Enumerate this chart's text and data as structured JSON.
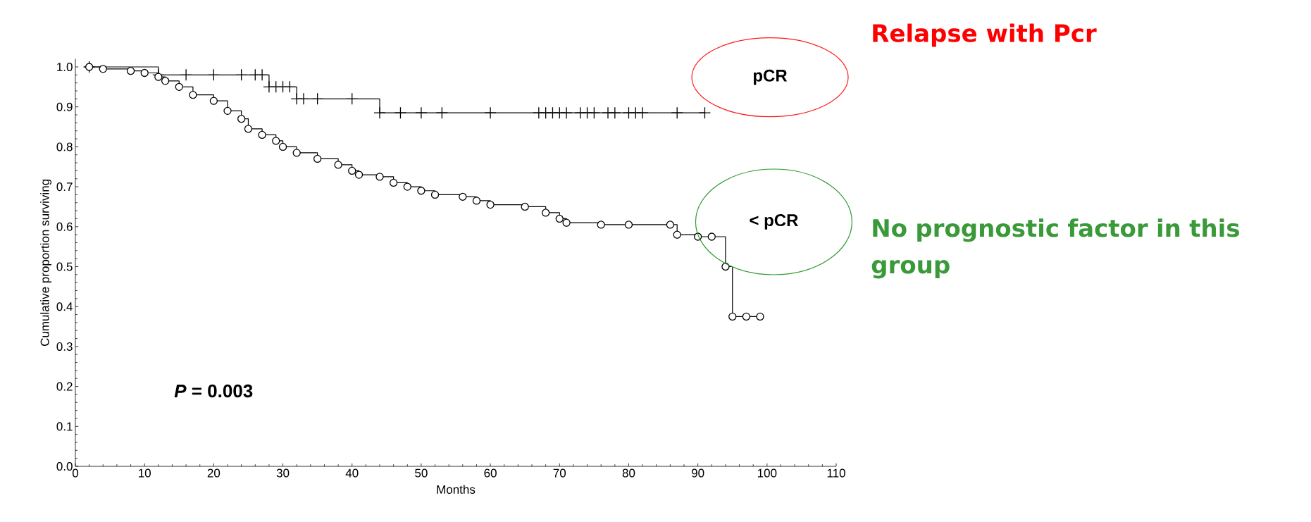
{
  "chart_data": {
    "type": "step",
    "xlabel": "Months",
    "ylabel": "Cumulative proportion surviving",
    "xlim": [
      0,
      110
    ],
    "ylim": [
      0,
      1.02
    ],
    "xticks": [
      0,
      10,
      20,
      30,
      40,
      50,
      60,
      70,
      80,
      90,
      100,
      110
    ],
    "yticks": [
      {
        "value": 0,
        "label": "0.0"
      },
      {
        "value": 0.1,
        "label": "0.1"
      },
      {
        "value": 0.2,
        "label": "0.2"
      },
      {
        "value": 0.3,
        "label": "0.3"
      },
      {
        "value": 0.4,
        "label": "0.4"
      },
      {
        "value": 0.5,
        "label": "0.5"
      },
      {
        "value": 0.6,
        "label": "0.6"
      },
      {
        "value": 0.7,
        "label": "0.7"
      },
      {
        "value": 0.8,
        "label": "0.8"
      },
      {
        "value": 0.9,
        "label": "0.9"
      },
      {
        "value": 1,
        "label": "1.0"
      }
    ],
    "grid": false,
    "line_style": "solid",
    "series": [
      {
        "name": "pCR",
        "color": "#000000",
        "marker": "cross",
        "x": [
          2,
          12,
          16,
          20,
          24,
          26,
          27,
          28,
          29,
          30,
          31,
          32,
          33,
          35,
          40,
          44,
          47,
          50,
          53,
          60,
          67,
          68,
          69,
          70,
          71,
          73,
          74,
          75,
          77,
          78,
          80,
          81,
          82,
          87,
          91
        ],
        "values": [
          1.0,
          0.98,
          0.98,
          0.98,
          0.98,
          0.98,
          0.98,
          0.95,
          0.95,
          0.95,
          0.95,
          0.92,
          0.92,
          0.92,
          0.92,
          0.885,
          0.885,
          0.885,
          0.885,
          0.885,
          0.885,
          0.885,
          0.885,
          0.885,
          0.885,
          0.885,
          0.885,
          0.885,
          0.885,
          0.885,
          0.885,
          0.885,
          0.885,
          0.885,
          0.885
        ]
      },
      {
        "name": "< pCR",
        "color": "#000000",
        "marker": "circle",
        "x": [
          2,
          4,
          8,
          10,
          12,
          13,
          15,
          17,
          20,
          22,
          24,
          25,
          27,
          29,
          30,
          32,
          35,
          38,
          40,
          41,
          44,
          46,
          48,
          50,
          52,
          56,
          58,
          60,
          65,
          68,
          70,
          71,
          76,
          80,
          86,
          87,
          90,
          92,
          94,
          95,
          97,
          99
        ],
        "values": [
          1.0,
          0.995,
          0.99,
          0.985,
          0.975,
          0.965,
          0.95,
          0.93,
          0.915,
          0.89,
          0.87,
          0.845,
          0.83,
          0.815,
          0.8,
          0.785,
          0.77,
          0.755,
          0.74,
          0.73,
          0.725,
          0.71,
          0.7,
          0.69,
          0.68,
          0.675,
          0.665,
          0.655,
          0.65,
          0.635,
          0.62,
          0.61,
          0.605,
          0.605,
          0.605,
          0.58,
          0.575,
          0.575,
          0.5,
          0.375,
          0.375,
          0.375
        ]
      }
    ],
    "annotations": [
      "Relapse with Pcr",
      "No prognostic factor in this group",
      "*P* = 0.003"
    ]
  }
}
